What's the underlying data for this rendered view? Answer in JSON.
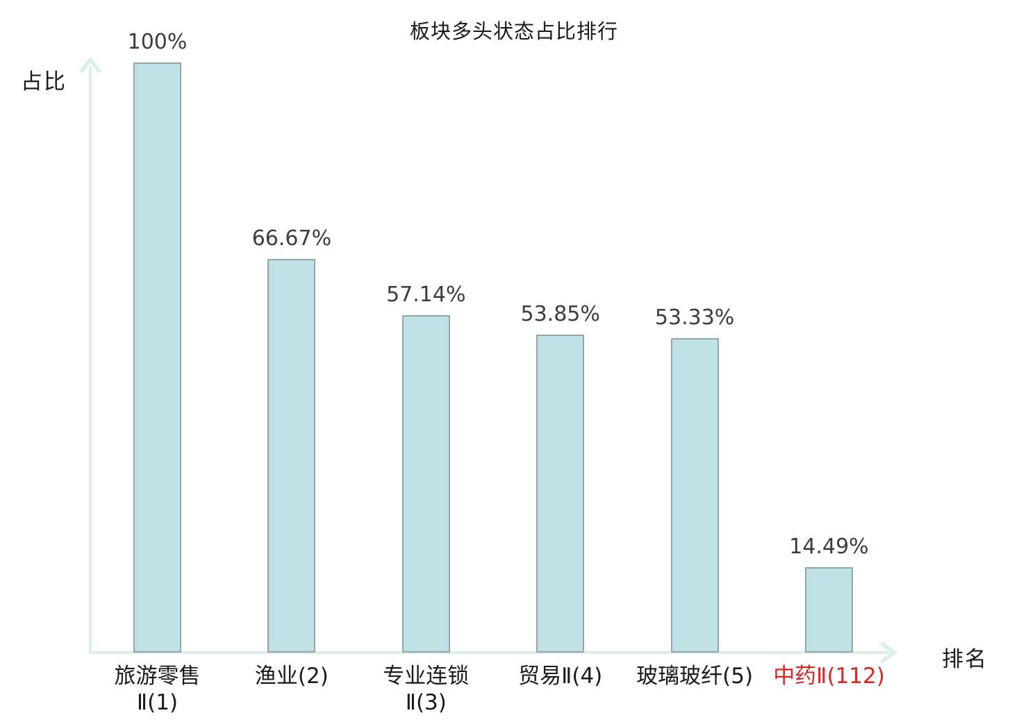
{
  "title": "板块多头状态占比排行",
  "colors": {
    "bar_fill": "#bfe0e4",
    "bar_border": "#92a5aa",
    "axis": "#ddefeb",
    "value_label": "#3c3c3c",
    "category_label": "#1a1a1a",
    "highlight": "#d9271e",
    "background": "#ffffff"
  },
  "chart_data": {
    "type": "bar",
    "title": "板块多头状态占比排行",
    "xlabel": "排名",
    "ylabel": "占比",
    "ylim": [
      0,
      100
    ],
    "grid": false,
    "legend": false,
    "categories": [
      "旅游零售Ⅱ(1)",
      "渔业(2)",
      "专业连锁Ⅱ(3)",
      "贸易Ⅱ(4)",
      "玻璃玻纤(5)",
      "中药Ⅱ(112)"
    ],
    "category_lines": [
      [
        "旅游零售",
        "Ⅱ(1)"
      ],
      [
        "渔业(2)"
      ],
      [
        "专业连锁",
        "Ⅱ(3)"
      ],
      [
        "贸易Ⅱ(4)"
      ],
      [
        "玻璃玻纤(5)"
      ],
      [
        "中药Ⅱ(112)"
      ]
    ],
    "values": [
      100,
      66.67,
      57.14,
      53.85,
      53.33,
      14.49
    ],
    "value_labels": [
      "100%",
      "66.67%",
      "57.14%",
      "53.85%",
      "53.33%",
      "14.49%"
    ],
    "highlight_index": 5
  }
}
